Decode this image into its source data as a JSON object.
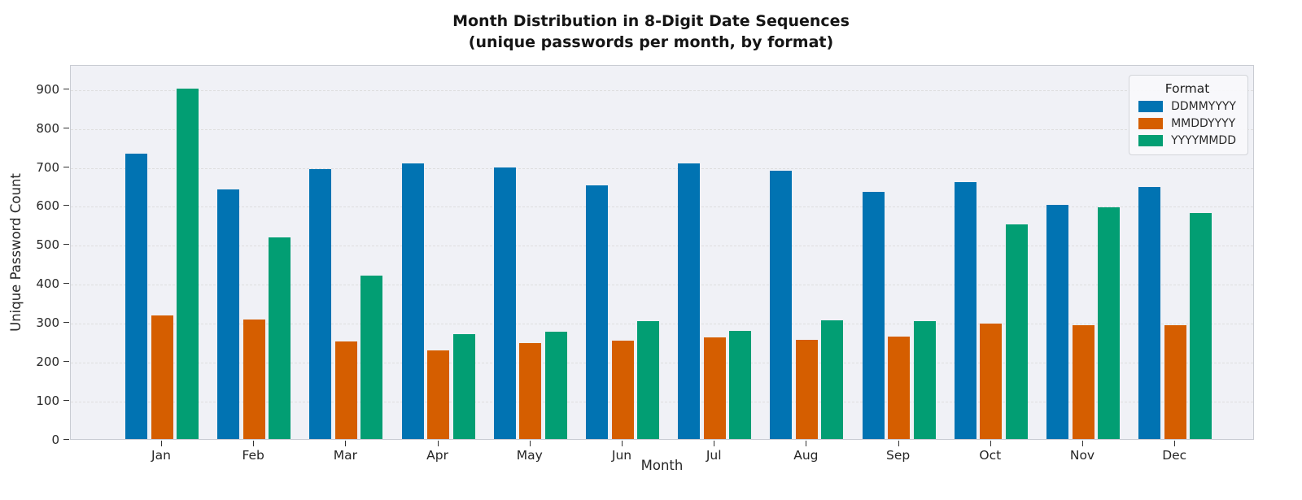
{
  "title": {
    "line1": "Month Distribution in 8-Digit Date Sequences",
    "line2": "(unique passwords per month, by format)"
  },
  "chart_data": {
    "type": "bar",
    "title": "Month Distribution in 8-Digit Date Sequences",
    "subtitle": "(unique passwords per month, by format)",
    "xlabel": "Month",
    "ylabel": "Unique Password Count",
    "categories": [
      "Jan",
      "Feb",
      "Mar",
      "Apr",
      "May",
      "Jun",
      "Jul",
      "Aug",
      "Sep",
      "Oct",
      "Nov",
      "Dec"
    ],
    "series": [
      {
        "name": "DDMMYYYY",
        "color": "#0173b2",
        "values": [
          733,
          641,
          693,
          708,
          696,
          652,
          708,
          688,
          634,
          660,
          600,
          647
        ]
      },
      {
        "name": "MMDDYYYY",
        "color": "#d55e00",
        "values": [
          318,
          307,
          251,
          227,
          247,
          252,
          261,
          254,
          263,
          297,
          292,
          292
        ]
      },
      {
        "name": "YYYYMMDD",
        "color": "#029e73",
        "values": [
          900,
          517,
          420,
          269,
          276,
          302,
          277,
          304,
          303,
          551,
          595,
          580
        ]
      }
    ],
    "yticks": [
      0,
      100,
      200,
      300,
      400,
      500,
      600,
      700,
      800,
      900
    ],
    "ylim": [
      0,
      962
    ],
    "grid": "horizontal-dashed",
    "legend": {
      "title": "Format",
      "position": "upper-right"
    },
    "plot_bg": "#f0f1f6",
    "figure_bg": "#ffffff"
  }
}
